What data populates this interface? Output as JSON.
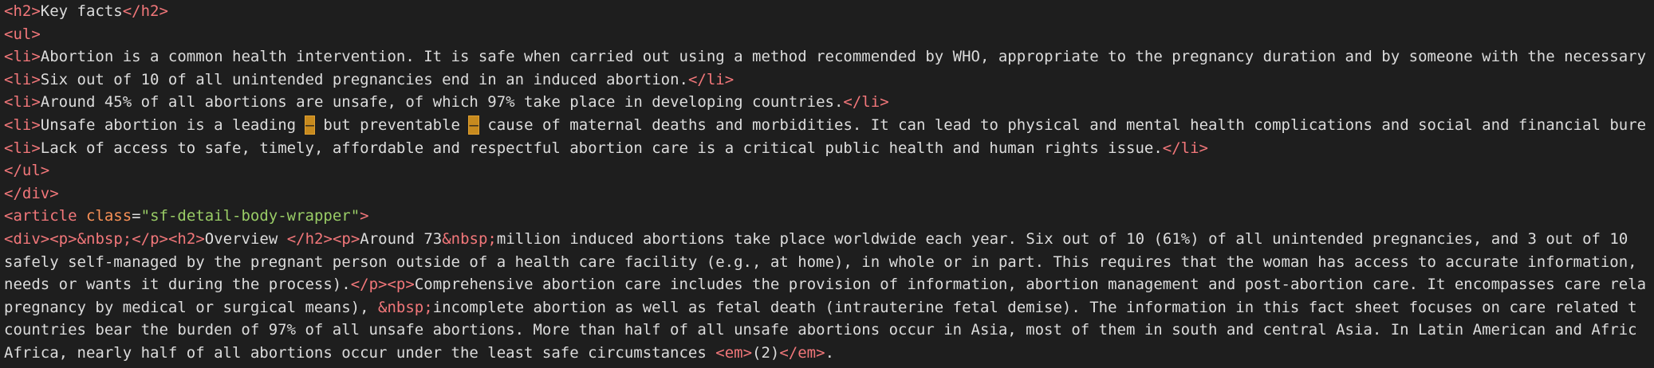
{
  "lines": [
    "<h2>Key facts</h2>",
    "<ul>",
    "<li>Abortion is a common health intervention. It is safe when carried out using a method recommended by WHO, appropriate to the pregnancy duration and by someone with the necessary",
    "<li>Six out of 10 of all unintended pregnancies end in an induced abortion.</li>",
    "<li>Around 45% of all abortions are unsafe, of which 97% take place in developing countries.</li>",
    "<li>Unsafe abortion is a leading – but preventable – cause of maternal deaths and morbidities. It can lead to physical and mental health complications and social and financial bure",
    "<li>Lack of access to safe, timely, affordable and respectful abortion care is a critical public health and human rights issue.</li>",
    "</ul>",
    "</div>",
    "<article class=\"sf-detail-body-wrapper\">",
    "<div><p>&nbsp;</p><h2>Overview </h2><p>Around 73&nbsp;million induced abortions take place worldwide each year. Six out of 10 (61%) of all unintended pregnancies, and 3 out of 10",
    "safely self-managed by the pregnant person outside of a health care facility (e.g., at home), in whole or in part. This requires that the woman has access to accurate information,",
    "needs or wants it during the process).</p><p>Comprehensive abortion care includes the provision of information, abortion management and post-abortion care. It encompasses care rela",
    "pregnancy by medical or surgical means), &nbsp;incomplete abortion as well as fetal death (intrauterine fetal demise). The information in this fact sheet focuses on care related t",
    "countries bear the burden of 97% of all unsafe abortions. More than half of all unsafe abortions occur in Asia, most of them in south and central Asia. In Latin American and Afric",
    "Africa, nearly half of all abortions occur under the least safe circumstances <em>(2)</em>."
  ]
}
